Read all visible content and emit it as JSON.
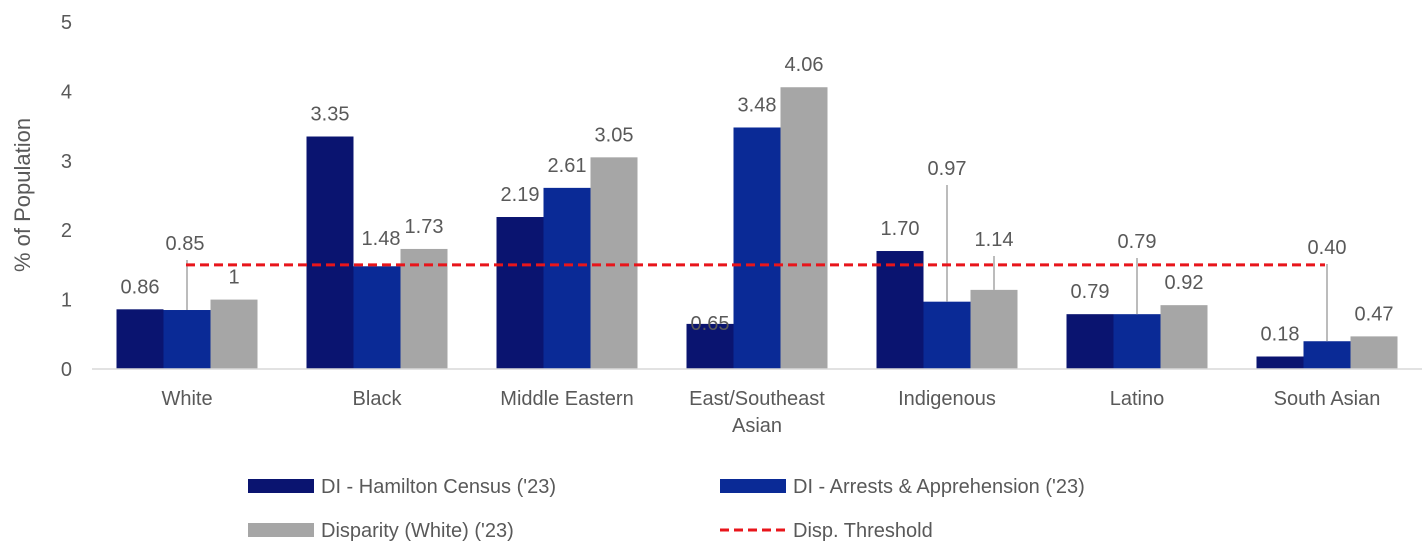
{
  "chart_data": {
    "type": "bar",
    "title": "",
    "ylabel": "% of Population",
    "xlabel": "",
    "ylim": [
      0,
      5
    ],
    "yticks": [
      0,
      1,
      2,
      3,
      4,
      5
    ],
    "grid": false,
    "legend_position": "bottom",
    "categories": [
      [
        "White"
      ],
      [
        "Black"
      ],
      [
        "Middle Eastern"
      ],
      [
        "East/Southeast",
        "Asian"
      ],
      [
        "Indigenous"
      ],
      [
        "Latino"
      ],
      [
        "South Asian"
      ]
    ],
    "series": [
      {
        "name": "DI - Hamilton Census ('23)",
        "color": "#0a1470",
        "values": [
          0.86,
          3.35,
          2.19,
          0.65,
          1.7,
          0.79,
          0.18
        ],
        "labels": [
          "0.86",
          "3.35",
          "2.19",
          "0.65",
          "1.70",
          "0.79",
          "0.18"
        ]
      },
      {
        "name": "DI - Arrests & Apprehension ('23)",
        "color": "#0a2a96",
        "values": [
          0.85,
          1.48,
          2.61,
          3.48,
          0.97,
          0.79,
          0.4
        ],
        "labels": [
          "0.85",
          "1.48",
          "2.61",
          "3.48",
          "0.97",
          "0.79",
          "0.40"
        ]
      },
      {
        "name": "Disparity (White) ('23)",
        "color": "#a6a6a6",
        "values": [
          1,
          1.73,
          3.05,
          4.06,
          1.14,
          0.92,
          0.47
        ],
        "labels": [
          "1",
          "1.73",
          "3.05",
          "4.06",
          "1.14",
          "0.92",
          "0.47"
        ]
      }
    ],
    "threshold": {
      "name": "Disp. Threshold",
      "value": 1.5,
      "color": "#e8151b",
      "style": "dashed"
    }
  }
}
